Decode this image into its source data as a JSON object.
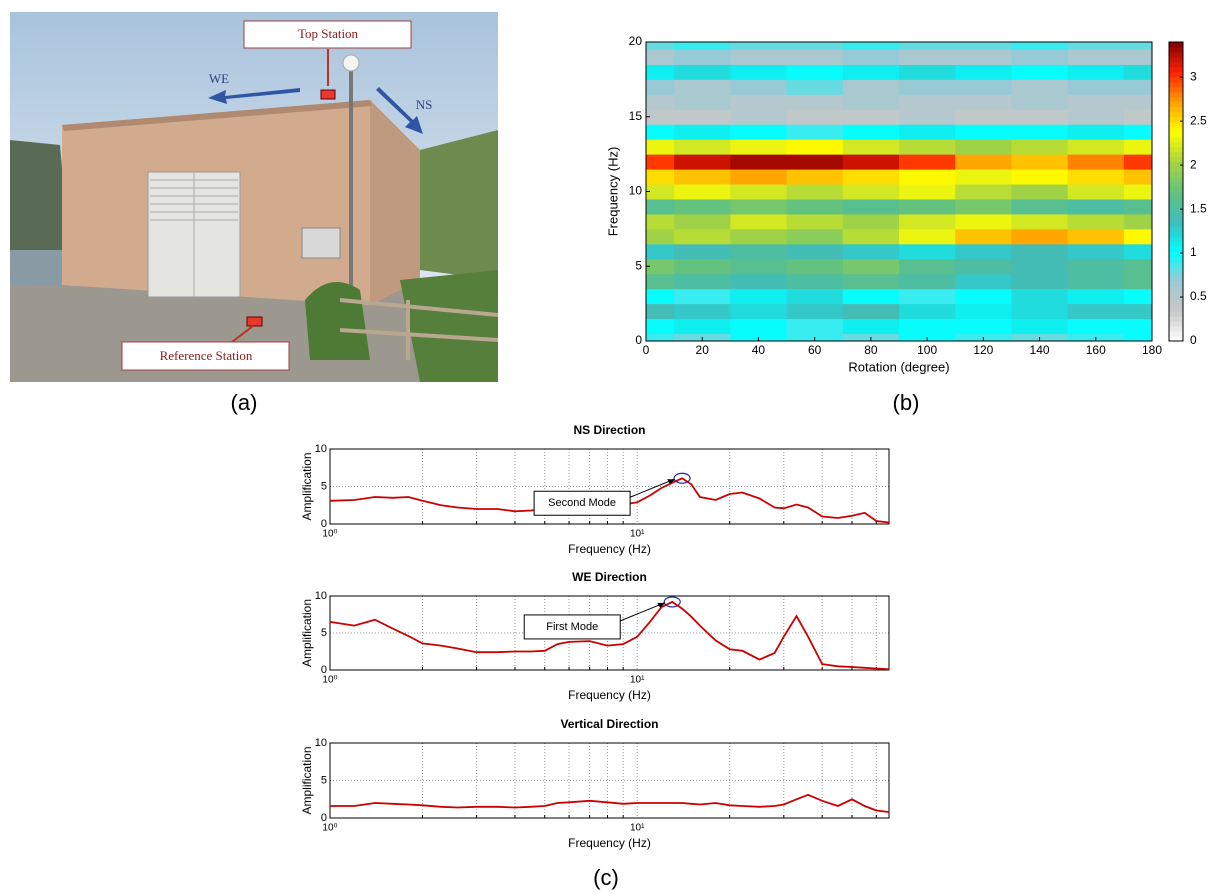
{
  "photo": {
    "labels": {
      "top": "Top Station",
      "we": "WE",
      "ns": "NS",
      "reference": "Reference Station"
    }
  },
  "panel_labels": {
    "a": "(a)",
    "b": "(b)",
    "c": "(c)"
  },
  "chart_data": [
    {
      "type": "heatmap",
      "xlabel": "Rotation (degree)",
      "ylabel": "Frequency (Hz)",
      "x": [
        0,
        20,
        40,
        60,
        80,
        100,
        120,
        140,
        160,
        180
      ],
      "y": [
        0,
        1,
        2,
        3,
        4,
        5,
        6,
        7,
        8,
        9,
        10,
        11,
        12,
        13,
        14,
        15,
        16,
        17,
        18,
        19,
        20
      ],
      "z": [
        [
          0.9,
          0.8,
          1.0,
          0.9,
          0.8,
          1.0,
          0.9,
          0.8,
          0.9,
          1.0
        ],
        [
          1.0,
          1.1,
          1.0,
          0.9,
          1.1,
          1.0,
          1.0,
          1.1,
          1.0,
          1.0
        ],
        [
          1.4,
          1.3,
          1.2,
          1.3,
          1.4,
          1.2,
          1.1,
          1.2,
          1.3,
          1.3
        ],
        [
          1.0,
          0.9,
          1.1,
          1.2,
          1.0,
          0.9,
          1.0,
          1.2,
          1.1,
          1.0
        ],
        [
          1.6,
          1.5,
          1.4,
          1.5,
          1.6,
          1.5,
          1.3,
          1.4,
          1.5,
          1.6
        ],
        [
          1.8,
          1.7,
          1.6,
          1.7,
          1.8,
          1.6,
          1.5,
          1.4,
          1.5,
          1.6
        ],
        [
          1.3,
          1.4,
          1.5,
          1.4,
          1.3,
          1.2,
          1.3,
          1.4,
          1.3,
          1.2
        ],
        [
          2.0,
          2.1,
          2.0,
          1.9,
          2.1,
          2.3,
          2.6,
          2.7,
          2.6,
          2.4
        ],
        [
          2.1,
          2.0,
          2.2,
          2.1,
          2.0,
          2.2,
          2.3,
          2.2,
          2.1,
          2.0
        ],
        [
          1.6,
          1.7,
          1.8,
          1.7,
          1.6,
          1.7,
          1.8,
          1.6,
          1.5,
          1.6
        ],
        [
          2.2,
          2.3,
          2.2,
          2.1,
          2.2,
          2.3,
          2.1,
          2.0,
          2.2,
          2.3
        ],
        [
          2.5,
          2.6,
          2.7,
          2.6,
          2.5,
          2.4,
          2.3,
          2.4,
          2.5,
          2.6
        ],
        [
          3.0,
          3.2,
          3.3,
          3.3,
          3.2,
          3.0,
          2.7,
          2.6,
          2.8,
          3.0
        ],
        [
          2.3,
          2.2,
          2.3,
          2.4,
          2.2,
          2.1,
          2.0,
          2.1,
          2.2,
          2.3
        ],
        [
          1.0,
          1.1,
          1.0,
          0.9,
          1.0,
          1.1,
          1.0,
          1.0,
          1.1,
          1.0
        ],
        [
          0.4,
          0.4,
          0.5,
          0.4,
          0.4,
          0.5,
          0.4,
          0.4,
          0.5,
          0.4
        ],
        [
          0.5,
          0.6,
          0.5,
          0.5,
          0.6,
          0.5,
          0.5,
          0.6,
          0.5,
          0.5
        ],
        [
          0.7,
          0.6,
          0.7,
          0.8,
          0.6,
          0.7,
          0.7,
          0.6,
          0.7,
          0.7
        ],
        [
          1.1,
          1.2,
          1.1,
          1.0,
          1.1,
          1.2,
          1.1,
          1.0,
          1.1,
          1.2
        ],
        [
          0.6,
          0.7,
          0.6,
          0.6,
          0.7,
          0.6,
          0.6,
          0.7,
          0.6,
          0.6
        ],
        [
          0.8,
          0.9,
          0.8,
          0.8,
          0.9,
          0.8,
          0.8,
          0.9,
          0.8,
          0.8
        ]
      ],
      "xlim": [
        0,
        180
      ],
      "ylim": [
        0,
        20
      ],
      "xticks": [
        0,
        20,
        40,
        60,
        80,
        100,
        120,
        140,
        160,
        180
      ],
      "yticks": [
        0,
        5,
        10,
        15,
        20
      ],
      "clim": [
        0,
        3.4
      ],
      "cticks": [
        0,
        0.5,
        1,
        1.5,
        2,
        2.5,
        3
      ],
      "colormap": [
        "#ffffff",
        "#c8c8c8",
        "#9fc8d2",
        "#00ffff",
        "#3fbcbc",
        "#62c27e",
        "#a8d440",
        "#ffff00",
        "#ffa000",
        "#ff2000",
        "#800000"
      ]
    },
    {
      "type": "line",
      "title": "NS Direction",
      "xlabel": "Frequency (Hz)",
      "ylabel": "Amplification",
      "annotation": "Second Mode",
      "x": [
        1,
        1.2,
        1.4,
        1.6,
        1.8,
        2,
        2.3,
        2.6,
        3,
        3.5,
        4,
        4.5,
        5,
        5.5,
        6,
        7,
        8,
        9,
        10,
        11,
        12,
        13,
        14,
        15,
        16,
        18,
        20,
        22,
        25,
        28,
        30,
        33,
        36,
        40,
        45,
        50,
        55,
        60,
        66
      ],
      "values": [
        3.1,
        3.2,
        3.6,
        3.5,
        3.6,
        3.1,
        2.5,
        2.2,
        2.0,
        2.0,
        1.7,
        1.8,
        2.0,
        2.2,
        2.3,
        2.5,
        2.3,
        2.6,
        2.9,
        3.8,
        4.8,
        5.5,
        6.1,
        5.3,
        3.6,
        3.2,
        4.0,
        4.2,
        3.4,
        2.2,
        2.1,
        2.6,
        2.2,
        1.0,
        0.8,
        1.1,
        1.5,
        0.4,
        0.2
      ],
      "color": "#cc0000",
      "log_x": true,
      "grid": true,
      "xlim": [
        1,
        66
      ],
      "ylim": [
        0,
        10
      ],
      "xticks": [
        {
          "value": 1,
          "label": "10⁰"
        },
        {
          "value": 10,
          "label": "10¹"
        }
      ],
      "xminorticks": [
        2,
        3,
        4,
        5,
        6,
        7,
        8,
        9,
        20,
        30,
        40,
        50,
        60
      ],
      "yticks": [
        0,
        5,
        10
      ]
    },
    {
      "type": "line",
      "title": "WE Direction",
      "xlabel": "Frequency (Hz)",
      "ylabel": "Amplification",
      "annotation": "First Mode",
      "x": [
        1,
        1.2,
        1.4,
        1.6,
        1.8,
        2,
        2.3,
        2.6,
        3,
        3.5,
        4,
        4.5,
        5,
        5.5,
        6,
        7,
        8,
        9,
        10,
        11,
        12,
        13,
        14,
        15,
        16,
        18,
        20,
        22,
        25,
        28,
        30,
        33,
        36,
        40,
        45,
        50,
        55,
        60,
        66
      ],
      "values": [
        6.5,
        6.0,
        6.8,
        5.6,
        4.6,
        3.6,
        3.3,
        2.9,
        2.4,
        2.4,
        2.5,
        2.5,
        2.6,
        3.5,
        3.8,
        3.9,
        3.3,
        3.5,
        4.5,
        6.5,
        8.5,
        9.2,
        8.3,
        7.2,
        6.0,
        4.0,
        2.8,
        2.6,
        1.4,
        2.3,
        4.5,
        7.3,
        4.5,
        0.8,
        0.5,
        0.4,
        0.3,
        0.2,
        0.1
      ],
      "color": "#cc0000",
      "log_x": true,
      "grid": true,
      "xlim": [
        1,
        66
      ],
      "ylim": [
        0,
        10
      ],
      "xticks": [
        {
          "value": 1,
          "label": "10⁰"
        },
        {
          "value": 10,
          "label": "10¹"
        }
      ],
      "xminorticks": [
        2,
        3,
        4,
        5,
        6,
        7,
        8,
        9,
        20,
        30,
        40,
        50,
        60
      ],
      "yticks": [
        0,
        5,
        10
      ]
    },
    {
      "type": "line",
      "title": "Vertical Direction",
      "xlabel": "Frequency (Hz)",
      "ylabel": "Amplification",
      "x": [
        1,
        1.2,
        1.4,
        1.6,
        1.8,
        2,
        2.3,
        2.6,
        3,
        3.5,
        4,
        4.5,
        5,
        5.5,
        6,
        7,
        8,
        9,
        10,
        11,
        12,
        13,
        14,
        15,
        16,
        18,
        20,
        22,
        25,
        28,
        30,
        33,
        36,
        40,
        45,
        50,
        55,
        60,
        66
      ],
      "values": [
        1.6,
        1.6,
        2.0,
        1.9,
        1.8,
        1.7,
        1.5,
        1.4,
        1.5,
        1.5,
        1.4,
        1.5,
        1.6,
        2.0,
        2.1,
        2.3,
        2.1,
        1.9,
        2.0,
        2.0,
        2.0,
        2.0,
        2.0,
        1.9,
        1.8,
        2.0,
        1.7,
        1.6,
        1.5,
        1.6,
        1.8,
        2.5,
        3.1,
        2.3,
        1.6,
        2.5,
        1.6,
        1.0,
        0.8
      ],
      "color": "#cc0000",
      "log_x": true,
      "grid": true,
      "xlim": [
        1,
        66
      ],
      "ylim": [
        0,
        10
      ],
      "xticks": [
        {
          "value": 1,
          "label": "10⁰"
        },
        {
          "value": 10,
          "label": "10¹"
        }
      ],
      "xminorticks": [
        2,
        3,
        4,
        5,
        6,
        7,
        8,
        9,
        20,
        30,
        40,
        50,
        60
      ],
      "yticks": [
        0,
        5,
        10
      ]
    }
  ]
}
